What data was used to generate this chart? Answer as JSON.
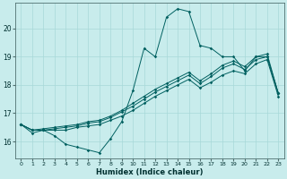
{
  "xlabel": "Humidex (Indice chaleur)",
  "bg_color": "#c8ecec",
  "grid_color": "#a8d8d8",
  "line_color": "#006060",
  "xlim": [
    -0.5,
    23.5
  ],
  "ylim": [
    15.4,
    20.9
  ],
  "yticks": [
    16,
    17,
    18,
    19,
    20
  ],
  "xticks": [
    0,
    1,
    2,
    3,
    4,
    5,
    6,
    7,
    8,
    9,
    10,
    11,
    12,
    13,
    14,
    15,
    16,
    17,
    18,
    19,
    20,
    21,
    22,
    23
  ],
  "lines": [
    [
      16.6,
      16.3,
      16.4,
      16.2,
      15.9,
      15.8,
      15.7,
      15.6,
      16.1,
      16.7,
      17.8,
      19.3,
      19.0,
      20.4,
      20.7,
      20.6,
      19.4,
      19.3,
      19.0,
      19.0,
      18.5,
      19.0,
      19.0,
      17.7
    ],
    [
      16.6,
      16.4,
      16.4,
      16.4,
      16.4,
      16.5,
      16.55,
      16.6,
      16.75,
      16.9,
      17.1,
      17.35,
      17.6,
      17.8,
      18.0,
      18.2,
      17.9,
      18.1,
      18.35,
      18.5,
      18.4,
      18.75,
      18.9,
      17.6
    ],
    [
      16.6,
      16.4,
      16.4,
      16.45,
      16.5,
      16.55,
      16.65,
      16.7,
      16.85,
      17.05,
      17.25,
      17.5,
      17.75,
      17.95,
      18.15,
      18.35,
      18.05,
      18.3,
      18.6,
      18.75,
      18.55,
      18.9,
      19.0,
      17.7
    ],
    [
      16.6,
      16.4,
      16.45,
      16.5,
      16.55,
      16.6,
      16.7,
      16.75,
      16.9,
      17.1,
      17.35,
      17.6,
      17.85,
      18.05,
      18.25,
      18.45,
      18.15,
      18.4,
      18.7,
      18.85,
      18.65,
      19.0,
      19.1,
      17.7
    ]
  ]
}
